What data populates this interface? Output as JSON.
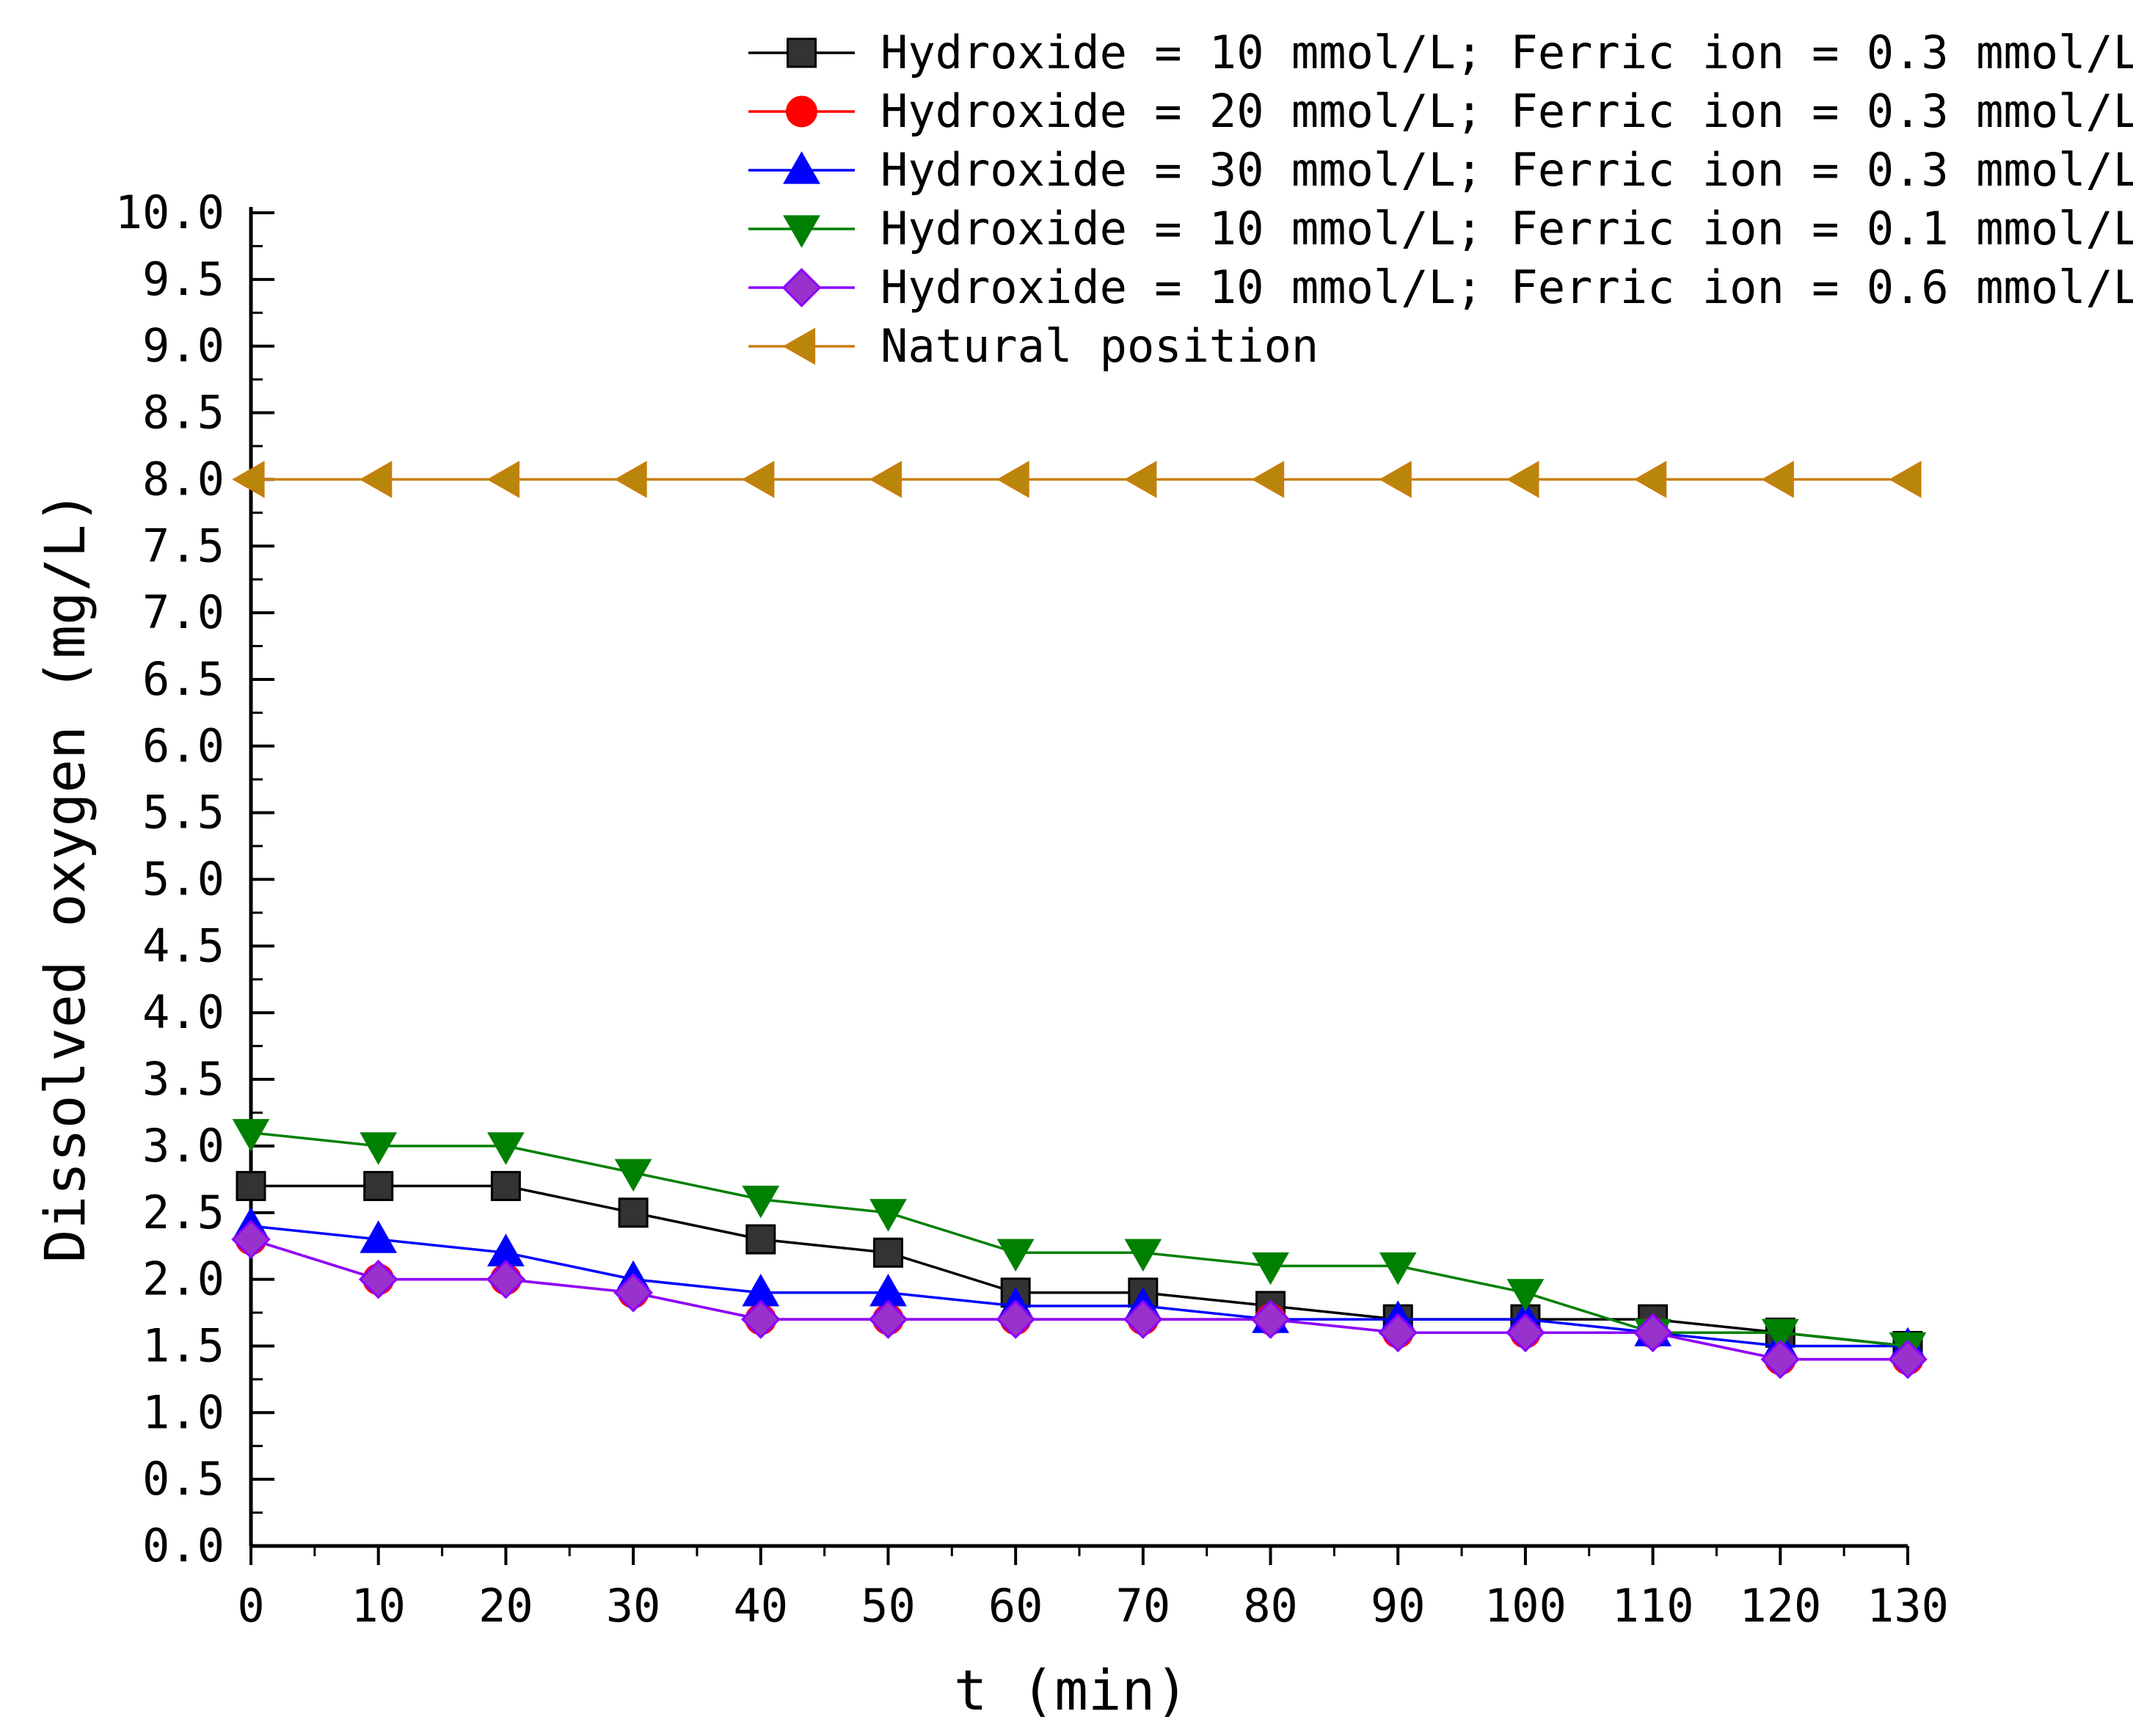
{
  "chart_data": {
    "type": "line",
    "title": "",
    "xlabel": "t (min)",
    "ylabel": "Dissolved oxygen (mg/L)",
    "xlim": [
      0,
      130
    ],
    "ylim": [
      0,
      10
    ],
    "x_ticks": [
      0,
      10,
      20,
      30,
      40,
      50,
      60,
      70,
      80,
      90,
      100,
      110,
      120,
      130
    ],
    "x_tick_labels": [
      "0",
      "10",
      "20",
      "30",
      "40",
      "50",
      "60",
      "70",
      "80",
      "90",
      "100",
      "110",
      "120",
      "130"
    ],
    "y_ticks": [
      0,
      0.5,
      1,
      1.5,
      2,
      2.5,
      3,
      3.5,
      4,
      4.5,
      5,
      5.5,
      6,
      6.5,
      7,
      7.5,
      8,
      8.5,
      9,
      9.5,
      10
    ],
    "y_tick_labels": [
      "0.0",
      "0.5",
      "1.0",
      "1.5",
      "2.0",
      "2.5",
      "3.0",
      "3.5",
      "4.0",
      "4.5",
      "5.0",
      "5.5",
      "6.0",
      "6.5",
      "7.0",
      "7.5",
      "8.0",
      "8.5",
      "9.0",
      "9.5",
      "10.0"
    ],
    "grid": false,
    "legend_position": "top-right",
    "x": [
      0,
      10,
      20,
      30,
      40,
      50,
      60,
      70,
      80,
      90,
      100,
      110,
      120,
      130
    ],
    "series": [
      {
        "name": "Hydroxide = 10 mmol/L; Ferric ion = 0.3 mmol/L",
        "color": "#000000",
        "fill": "#333333",
        "marker": "square",
        "values": [
          2.7,
          2.7,
          2.7,
          2.5,
          2.3,
          2.2,
          1.9,
          1.9,
          1.8,
          1.7,
          1.7,
          1.7,
          1.6,
          1.5
        ]
      },
      {
        "name": "Hydroxide = 20 mmol/L; Ferric ion = 0.3 mmol/L",
        "color": "#ff0000",
        "fill": "#ff0000",
        "marker": "circle",
        "values": [
          2.3,
          2.0,
          2.0,
          1.9,
          1.7,
          1.7,
          1.7,
          1.7,
          1.7,
          1.6,
          1.6,
          1.6,
          1.4,
          1.4
        ]
      },
      {
        "name": "Hydroxide = 30 mmol/L; Ferric ion = 0.3 mmol/L",
        "color": "#0000ff",
        "fill": "#0000ff",
        "marker": "triangle-up",
        "values": [
          2.4,
          2.3,
          2.2,
          2.0,
          1.9,
          1.9,
          1.8,
          1.8,
          1.7,
          1.7,
          1.7,
          1.6,
          1.5,
          1.5
        ]
      },
      {
        "name": "Hydroxide = 10 mmol/L; Ferric ion = 0.1 mmol/L",
        "color": "#008000",
        "fill": "#008000",
        "marker": "triangle-down",
        "values": [
          3.1,
          3.0,
          3.0,
          2.8,
          2.6,
          2.5,
          2.2,
          2.2,
          2.1,
          2.1,
          1.9,
          1.6,
          1.6,
          1.5
        ]
      },
      {
        "name": "Hydroxide = 10 mmol/L; Ferric ion = 0.6 mmol/L",
        "color": "#8b00ff",
        "fill": "#9932cc",
        "marker": "diamond",
        "values": [
          2.3,
          2.0,
          2.0,
          1.9,
          1.7,
          1.7,
          1.7,
          1.7,
          1.7,
          1.6,
          1.6,
          1.6,
          1.4,
          1.4
        ]
      },
      {
        "name": "Natural position",
        "color": "#c87f0a",
        "fill": "#b8860b",
        "marker": "triangle-left",
        "values": [
          8.0,
          8.0,
          8.0,
          8.0,
          8.0,
          8.0,
          8.0,
          8.0,
          8.0,
          8.0,
          8.0,
          8.0,
          8.0,
          8.0
        ]
      }
    ]
  }
}
